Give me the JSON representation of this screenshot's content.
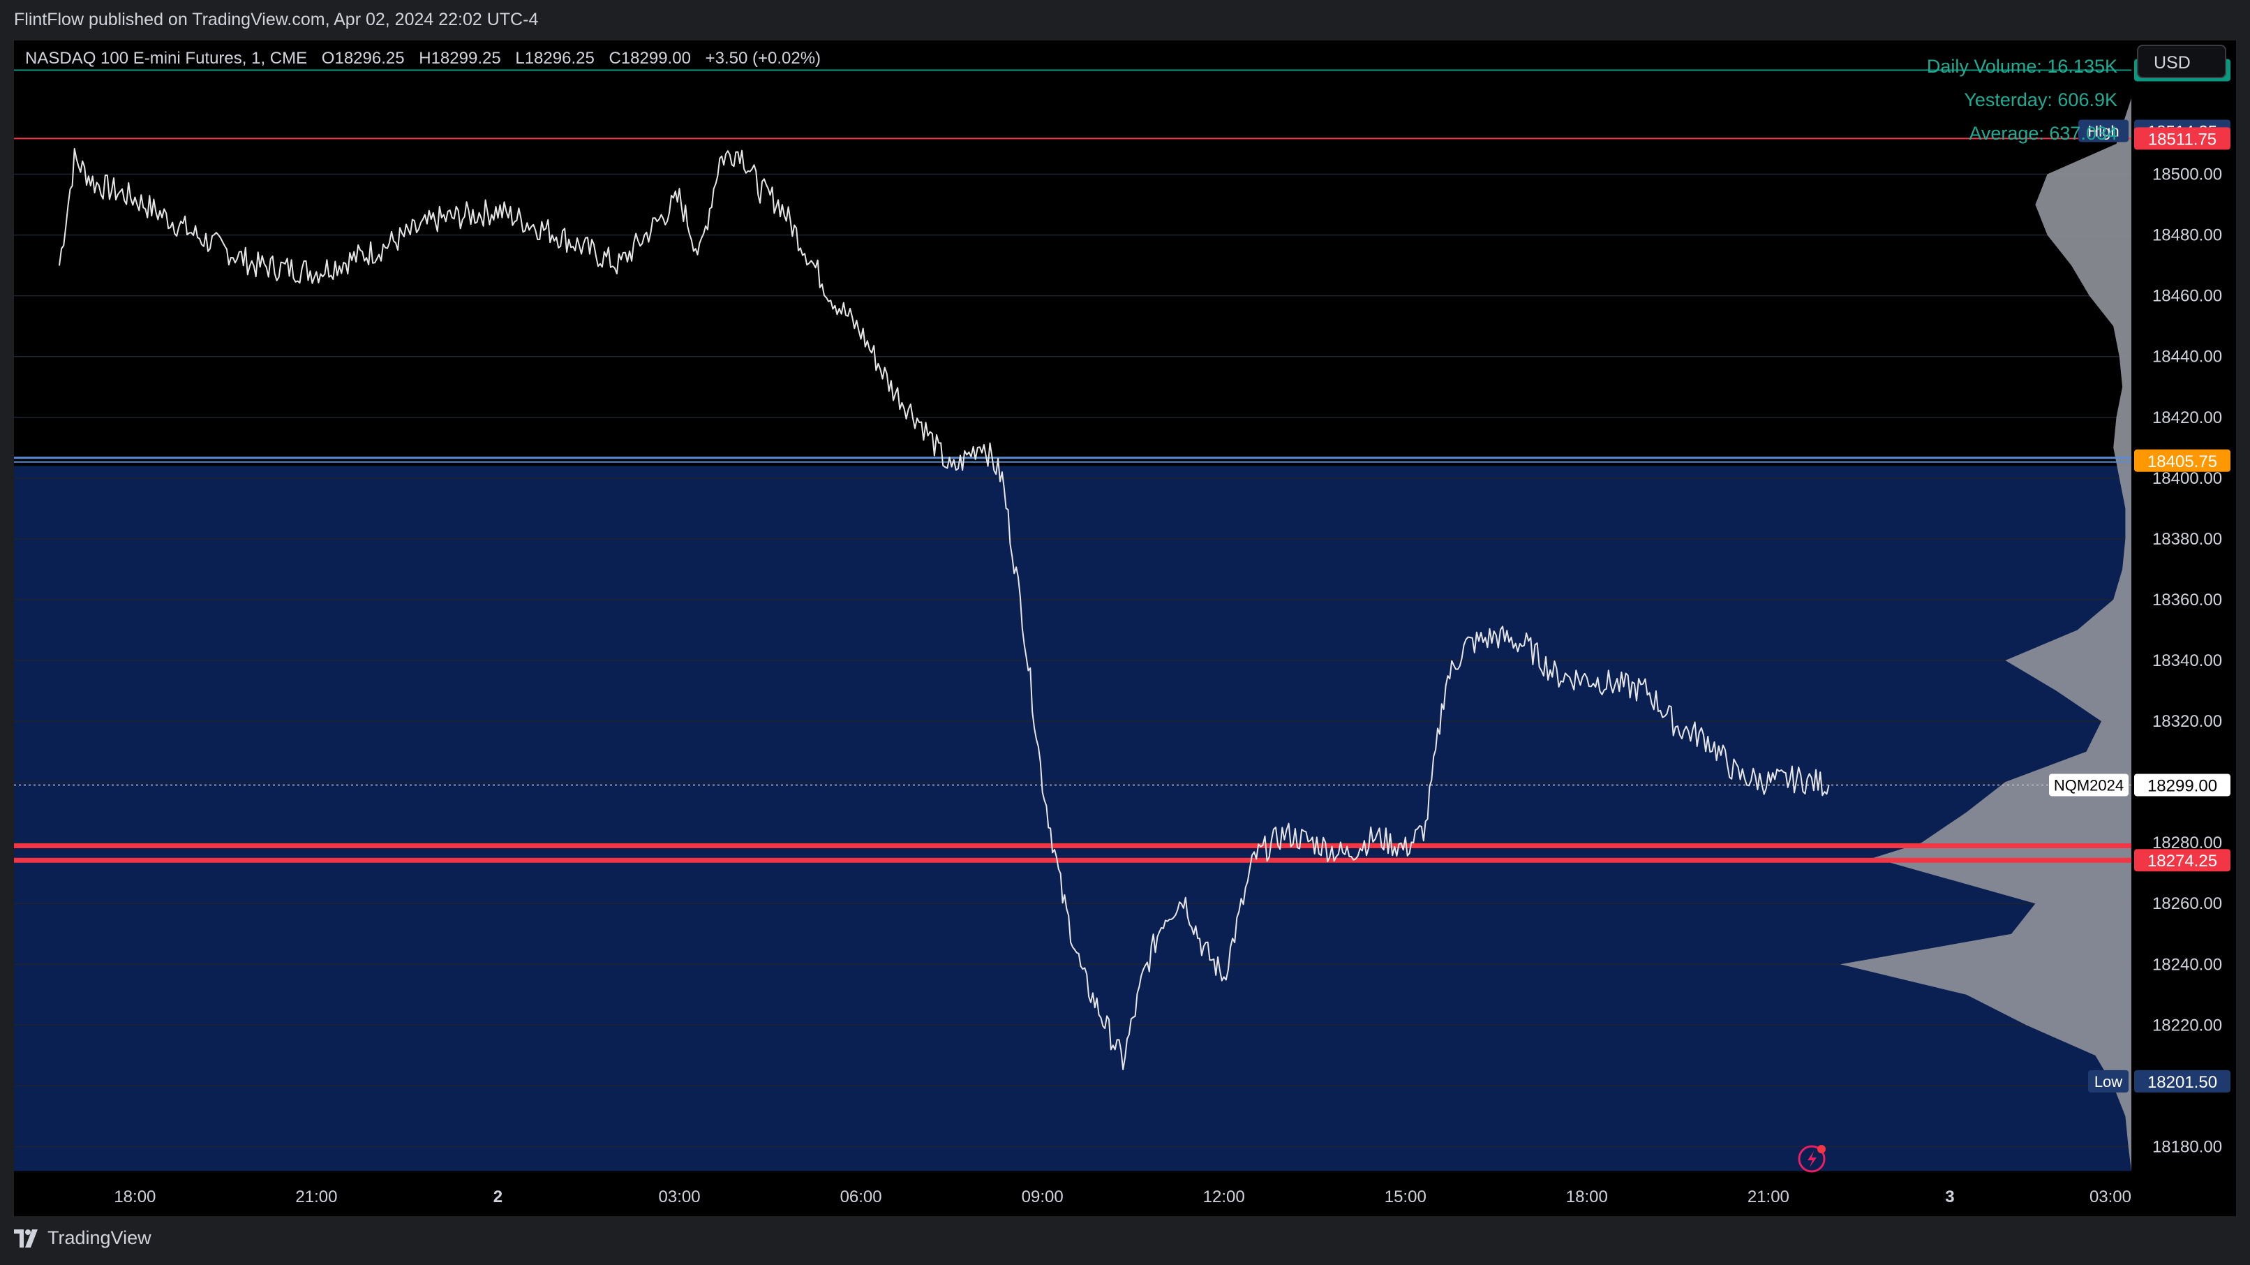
{
  "header": {
    "published": "FlintFlow published on TradingView.com, Apr 02, 2024 22:02 UTC-4"
  },
  "legend": {
    "symbol": "NASDAQ 100 E-mini Futures, 1, CME",
    "open": "O18296.25",
    "high": "H18299.25",
    "low": "L18296.25",
    "close": "C18299.00",
    "change": "+3.50 (+0.02%)"
  },
  "volume": {
    "daily": "Daily Volume: 16.135K",
    "yesterday": "Yesterday: 606.9K",
    "average": "Average: 637.034"
  },
  "currency": "USD",
  "price_axis": {
    "ticks": [
      "18500.00",
      "18480.00",
      "18460.00",
      "18440.00",
      "18420.00",
      "18400.00",
      "18380.00",
      "18360.00",
      "18340.00",
      "18320.00",
      "18300.00",
      "18280.00",
      "18260.00",
      "18240.00",
      "18220.00",
      "18200.00",
      "18180.00"
    ],
    "tick_values": [
      18500,
      18480,
      18460,
      18440,
      18420,
      18400,
      18380,
      18360,
      18340,
      18320,
      18300,
      18280,
      18260,
      18240,
      18220,
      18200,
      18180
    ],
    "badges": [
      {
        "text": "18534.25",
        "value": 18534.25,
        "color": "#089981"
      },
      {
        "text": "18514.25",
        "value": 18514.25,
        "color": "#1e3a6e",
        "tag": "High"
      },
      {
        "text": "18511.75",
        "value": 18511.75,
        "color": "#f23645"
      },
      {
        "text": "18405.75",
        "value": 18405.75,
        "color": "#ff9800"
      },
      {
        "text": "18299.00",
        "value": 18299.0,
        "color": "#ffffff",
        "tag": "NQM2024"
      },
      {
        "text": "18274.25",
        "value": 18274.25,
        "color": "#f23645"
      },
      {
        "text": "18201.50",
        "value": 18201.5,
        "color": "#1e3a6e",
        "tag": "Low"
      }
    ]
  },
  "time_axis": {
    "labels": [
      "18:00",
      "21:00",
      "2",
      "03:00",
      "06:00",
      "09:00",
      "12:00",
      "15:00",
      "18:00",
      "21:00",
      "3",
      "03:00"
    ]
  },
  "footer": {
    "logo_text": "TradingView"
  },
  "colors": {
    "background": "#000000",
    "value_area": "#0a1f52",
    "profile": "#8e9099",
    "red_line": "#f23645",
    "green_line": "#089981",
    "blue_line": "#5b8bd6"
  },
  "chart_data": {
    "type": "line",
    "title": "NASDAQ 100 E-mini Futures, 1, CME",
    "symbol": "NQM2024",
    "x_unit": "time (Apr 1 18:00 → Apr 3 03:00, UTC-4)",
    "ylim": [
      18170,
      18544
    ],
    "levels": {
      "green": 18534.25,
      "high": 18514.25,
      "red_upper": 18511.75,
      "orange": 18405.75,
      "last": 18299.0,
      "red_lower_a": 18279.0,
      "red_lower_b": 18274.25,
      "low": 18201.5
    },
    "value_area": [
      18172,
      18404
    ],
    "series": [
      {
        "x": [
          "04-01 16:45",
          "04-01 17:00",
          "04-01 17:20",
          "04-01 18:00",
          "04-01 19:00",
          "04-01 20:00",
          "04-01 21:00",
          "04-01 22:00",
          "04-01 23:00",
          "04-02 00:00",
          "04-02 01:00",
          "04-02 02:00",
          "04-02 02:40",
          "04-02 03:00",
          "04-02 03:20",
          "04-02 03:40",
          "04-02 04:00",
          "04-02 04:20",
          "04-02 04:40",
          "04-02 05:00",
          "04-02 05:30",
          "04-02 06:00",
          "04-02 06:30",
          "04-02 07:00",
          "04-02 07:30",
          "04-02 08:00",
          "04-02 08:20",
          "04-02 08:40",
          "04-02 09:00",
          "04-02 09:20",
          "04-02 09:40",
          "04-02 10:00",
          "04-02 10:20",
          "04-02 10:40",
          "04-02 11:00",
          "04-02 11:20",
          "04-02 11:40",
          "04-02 12:00",
          "04-02 12:30",
          "04-02 13:00",
          "04-02 13:30",
          "04-02 14:00",
          "04-02 14:30",
          "04-02 15:00",
          "04-02 15:20",
          "04-02 15:40",
          "04-02 16:00",
          "04-02 16:30",
          "04-02 17:00",
          "04-02 17:30",
          "04-02 18:00",
          "04-02 18:30",
          "04-02 19:00",
          "04-02 19:30",
          "04-02 20:00",
          "04-02 20:30",
          "04-02 21:00",
          "04-02 21:30",
          "04-02 22:00"
        ],
        "y": [
          18470,
          18505,
          18497,
          18492,
          18480,
          18470,
          18468,
          18475,
          18485,
          18488,
          18480,
          18470,
          18485,
          18492,
          18473,
          18505,
          18508,
          18495,
          18490,
          18478,
          18460,
          18448,
          18430,
          18418,
          18402,
          18412,
          18400,
          18355,
          18300,
          18262,
          18236,
          18222,
          18208,
          18236,
          18255,
          18262,
          18245,
          18236,
          18275,
          18283,
          18280,
          18276,
          18282,
          18278,
          18285,
          18333,
          18345,
          18348,
          18345,
          18335,
          18334,
          18332,
          18330,
          18318,
          18314,
          18302,
          18300,
          18301,
          18299
        ]
      }
    ],
    "volume_profile": {
      "price": [
        18525,
        18510,
        18500,
        18490,
        18480,
        18470,
        18460,
        18450,
        18440,
        18430,
        18420,
        18410,
        18400,
        18390,
        18380,
        18370,
        18360,
        18350,
        18340,
        18330,
        18320,
        18310,
        18300,
        18290,
        18280,
        18275,
        18270,
        18260,
        18250,
        18240,
        18230,
        18220,
        18210,
        18200,
        18190,
        18180,
        18172
      ],
      "volume": [
        0.0,
        0.05,
        0.28,
        0.32,
        0.28,
        0.2,
        0.14,
        0.06,
        0.04,
        0.03,
        0.05,
        0.06,
        0.04,
        0.02,
        0.02,
        0.03,
        0.06,
        0.18,
        0.42,
        0.25,
        0.1,
        0.15,
        0.42,
        0.55,
        0.7,
        0.86,
        0.68,
        0.32,
        0.4,
        0.97,
        0.55,
        0.35,
        0.12,
        0.06,
        0.02,
        0.01,
        0.0
      ]
    }
  }
}
